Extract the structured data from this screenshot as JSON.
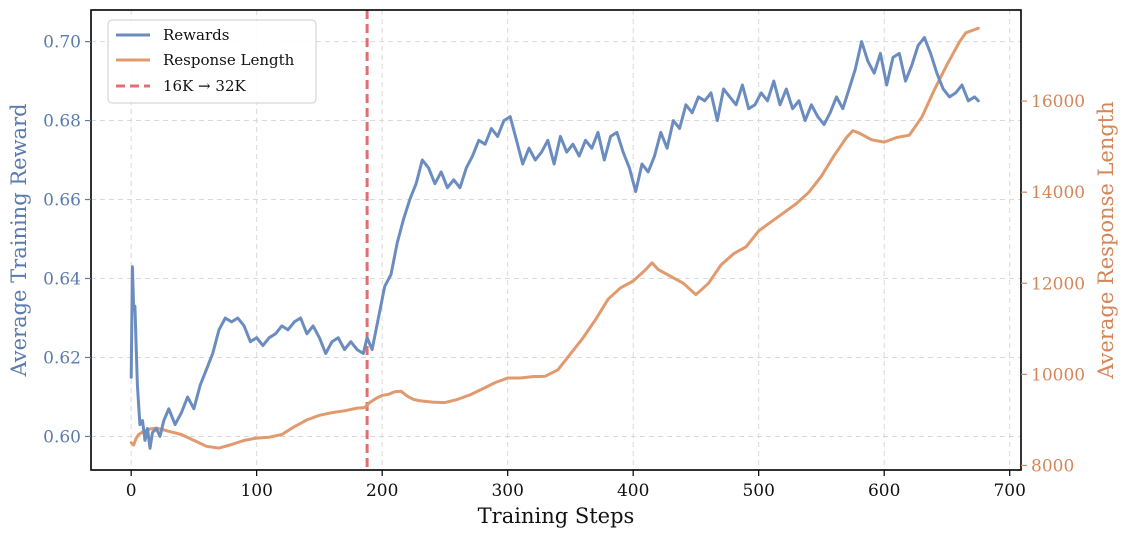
{
  "chart_data": {
    "type": "line",
    "xlabel": "Training Steps",
    "ylabel_left": "Average Training Reward",
    "ylabel_right": "Average Response Length",
    "xlim": [
      -32,
      709
    ],
    "ylim_left": [
      0.5915,
      0.708
    ],
    "ylim_right": [
      7900,
      18000
    ],
    "x_ticks": [
      0,
      100,
      200,
      300,
      400,
      500,
      600,
      700
    ],
    "y_left_ticks": [
      0.6,
      0.62,
      0.64,
      0.66,
      0.68,
      0.7
    ],
    "y_right_ticks": [
      8000,
      10000,
      12000,
      14000,
      16000
    ],
    "grid": true,
    "legend_position": "top-left",
    "colors": {
      "rewards": "#6b8cbf",
      "response_length": "#e09a6e",
      "switch_line": "#e07070",
      "left_axis": "#5a7bae",
      "right_axis": "#d4865a"
    },
    "series": [
      {
        "name": "Rewards",
        "axis": "left",
        "x": [
          0,
          1,
          2,
          3,
          5,
          7,
          9,
          11,
          13,
          15,
          17,
          20,
          23,
          26,
          30,
          35,
          40,
          45,
          50,
          55,
          60,
          65,
          70,
          75,
          80,
          85,
          90,
          95,
          100,
          105,
          110,
          115,
          120,
          125,
          130,
          135,
          140,
          145,
          150,
          155,
          160,
          165,
          170,
          175,
          180,
          185,
          188,
          192,
          197,
          202,
          207,
          212,
          217,
          222,
          227,
          232,
          237,
          242,
          247,
          252,
          257,
          262,
          267,
          272,
          277,
          282,
          287,
          292,
          297,
          302,
          307,
          312,
          317,
          322,
          327,
          332,
          337,
          342,
          347,
          352,
          357,
          362,
          367,
          372,
          377,
          382,
          387,
          392,
          397,
          402,
          407,
          412,
          417,
          422,
          427,
          432,
          437,
          442,
          447,
          452,
          457,
          462,
          467,
          472,
          477,
          482,
          487,
          492,
          497,
          502,
          507,
          512,
          517,
          522,
          527,
          532,
          537,
          542,
          547,
          552,
          557,
          562,
          567,
          572,
          577,
          582,
          587,
          592,
          597,
          602,
          607,
          612,
          617,
          622,
          627,
          632,
          637,
          642,
          647,
          652,
          657,
          662,
          667,
          672,
          675
        ],
        "y": [
          0.615,
          0.643,
          0.632,
          0.633,
          0.613,
          0.603,
          0.604,
          0.599,
          0.602,
          0.597,
          0.601,
          0.602,
          0.6,
          0.604,
          0.607,
          0.603,
          0.606,
          0.61,
          0.607,
          0.613,
          0.617,
          0.621,
          0.627,
          0.63,
          0.629,
          0.63,
          0.628,
          0.624,
          0.625,
          0.623,
          0.625,
          0.626,
          0.628,
          0.627,
          0.629,
          0.63,
          0.626,
          0.628,
          0.625,
          0.621,
          0.624,
          0.625,
          0.622,
          0.624,
          0.622,
          0.621,
          0.625,
          0.622,
          0.63,
          0.638,
          0.641,
          0.649,
          0.655,
          0.66,
          0.664,
          0.67,
          0.668,
          0.664,
          0.667,
          0.663,
          0.665,
          0.663,
          0.668,
          0.671,
          0.675,
          0.674,
          0.678,
          0.676,
          0.68,
          0.681,
          0.675,
          0.669,
          0.673,
          0.67,
          0.672,
          0.675,
          0.669,
          0.676,
          0.672,
          0.674,
          0.671,
          0.675,
          0.673,
          0.677,
          0.67,
          0.676,
          0.677,
          0.672,
          0.668,
          0.662,
          0.669,
          0.667,
          0.671,
          0.677,
          0.673,
          0.68,
          0.678,
          0.684,
          0.682,
          0.686,
          0.685,
          0.687,
          0.68,
          0.688,
          0.686,
          0.684,
          0.689,
          0.683,
          0.684,
          0.687,
          0.685,
          0.69,
          0.684,
          0.688,
          0.683,
          0.685,
          0.68,
          0.684,
          0.681,
          0.679,
          0.682,
          0.686,
          0.683,
          0.688,
          0.693,
          0.7,
          0.695,
          0.692,
          0.697,
          0.689,
          0.696,
          0.697,
          0.69,
          0.694,
          0.699,
          0.701,
          0.697,
          0.692,
          0.688,
          0.686,
          0.687,
          0.689,
          0.685,
          0.686,
          0.685
        ],
        "color": "#6b8cbf"
      },
      {
        "name": "Response Length",
        "axis": "right",
        "x": [
          0,
          2,
          4,
          6,
          10,
          15,
          20,
          25,
          30,
          40,
          50,
          60,
          70,
          80,
          90,
          100,
          110,
          120,
          130,
          140,
          150,
          160,
          170,
          180,
          186,
          190,
          195,
          200,
          205,
          210,
          215,
          220,
          225,
          230,
          240,
          250,
          260,
          270,
          280,
          290,
          300,
          310,
          320,
          330,
          340,
          350,
          360,
          370,
          380,
          390,
          400,
          410,
          415,
          420,
          430,
          440,
          450,
          460,
          470,
          480,
          490,
          500,
          510,
          520,
          530,
          540,
          550,
          560,
          570,
          575,
          580,
          590,
          600,
          610,
          620,
          630,
          640,
          650,
          660,
          665,
          670,
          675
        ],
        "y": [
          8500,
          8450,
          8600,
          8680,
          8750,
          8800,
          8820,
          8790,
          8750,
          8680,
          8550,
          8420,
          8380,
          8460,
          8550,
          8600,
          8620,
          8680,
          8850,
          9000,
          9100,
          9160,
          9200,
          9260,
          9270,
          9380,
          9470,
          9540,
          9560,
          9620,
          9630,
          9520,
          9450,
          9420,
          9390,
          9380,
          9450,
          9550,
          9680,
          9820,
          9920,
          9920,
          9950,
          9960,
          10100,
          10450,
          10800,
          11200,
          11650,
          11900,
          12050,
          12300,
          12450,
          12300,
          12150,
          12000,
          11750,
          12000,
          12400,
          12650,
          12800,
          13150,
          13350,
          13550,
          13750,
          14000,
          14350,
          14800,
          15200,
          15350,
          15300,
          15150,
          15100,
          15200,
          15250,
          15650,
          16250,
          16800,
          17300,
          17500,
          17550,
          17600
        ],
        "color": "#e09a6e"
      }
    ],
    "annotations": [
      {
        "type": "vline",
        "x": 188,
        "label": "16K → 32K",
        "color": "#e07070"
      }
    ],
    "legend": [
      "Rewards",
      "Response Length",
      "16K → 32K"
    ]
  }
}
